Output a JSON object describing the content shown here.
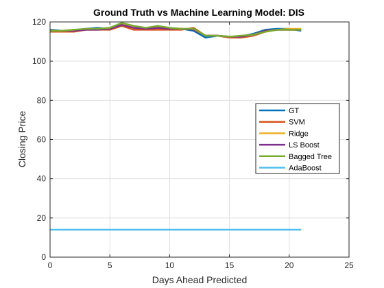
{
  "chart_data": {
    "type": "line",
    "title": "Ground Truth vs Machine Learning Model: DIS",
    "xlabel": "Days Ahead Predicted",
    "ylabel": "Closing Price",
    "xlim": [
      0,
      25
    ],
    "ylim": [
      0,
      120
    ],
    "xticks": [
      0,
      5,
      10,
      15,
      20,
      25
    ],
    "yticks": [
      0,
      20,
      40,
      60,
      80,
      100,
      120
    ],
    "grid": true,
    "legend_position": "right",
    "x": [
      0,
      1,
      2,
      3,
      4,
      5,
      6,
      7,
      8,
      9,
      10,
      11,
      12,
      13,
      14,
      15,
      16,
      17,
      18,
      19,
      20,
      21
    ],
    "series": [
      {
        "name": "GT",
        "color": "#0072BD",
        "values": [
          116.0,
          115.5,
          115.8,
          116.5,
          117.0,
          116.5,
          119.0,
          117.0,
          116.5,
          117.0,
          116.5,
          116.5,
          115.5,
          112.0,
          113.0,
          112.5,
          112.5,
          114.0,
          116.0,
          116.5,
          116.5,
          115.5
        ]
      },
      {
        "name": "SVM",
        "color": "#D95319",
        "values": [
          115.0,
          115.0,
          115.0,
          116.0,
          116.0,
          116.0,
          118.0,
          116.0,
          116.0,
          116.0,
          116.0,
          116.0,
          117.0,
          113.0,
          113.0,
          112.0,
          112.0,
          113.0,
          115.0,
          116.0,
          116.0,
          116.0
        ]
      },
      {
        "name": "Ridge",
        "color": "#EDB120",
        "values": [
          115.5,
          115.5,
          116.0,
          116.0,
          116.5,
          117.0,
          119.0,
          117.5,
          117.0,
          117.5,
          117.0,
          116.5,
          116.5,
          113.0,
          113.0,
          112.5,
          112.5,
          113.5,
          115.5,
          116.0,
          116.5,
          116.5
        ]
      },
      {
        "name": "LS Boost",
        "color": "#7E2F8E",
        "values": [
          115.5,
          115.5,
          115.5,
          116.0,
          116.0,
          116.5,
          118.5,
          117.0,
          116.5,
          117.0,
          116.5,
          116.5,
          116.0,
          113.0,
          113.0,
          112.5,
          112.5,
          113.5,
          115.5,
          116.0,
          116.0,
          116.0
        ]
      },
      {
        "name": "Bagged Tree",
        "color": "#77AC30",
        "values": [
          115.5,
          115.5,
          116.0,
          116.5,
          116.5,
          117.0,
          119.5,
          118.0,
          117.0,
          118.0,
          117.0,
          116.5,
          116.5,
          113.0,
          113.0,
          112.5,
          113.0,
          113.5,
          115.0,
          116.0,
          116.0,
          116.0
        ]
      },
      {
        "name": "AdaBoost",
        "color": "#4DBEEE",
        "values": [
          14.0,
          14.0,
          14.0,
          14.0,
          14.0,
          14.0,
          14.0,
          14.0,
          14.0,
          14.0,
          14.0,
          14.0,
          14.0,
          14.0,
          14.0,
          14.0,
          14.0,
          14.0,
          14.0,
          14.0,
          14.0,
          14.0
        ]
      }
    ]
  }
}
